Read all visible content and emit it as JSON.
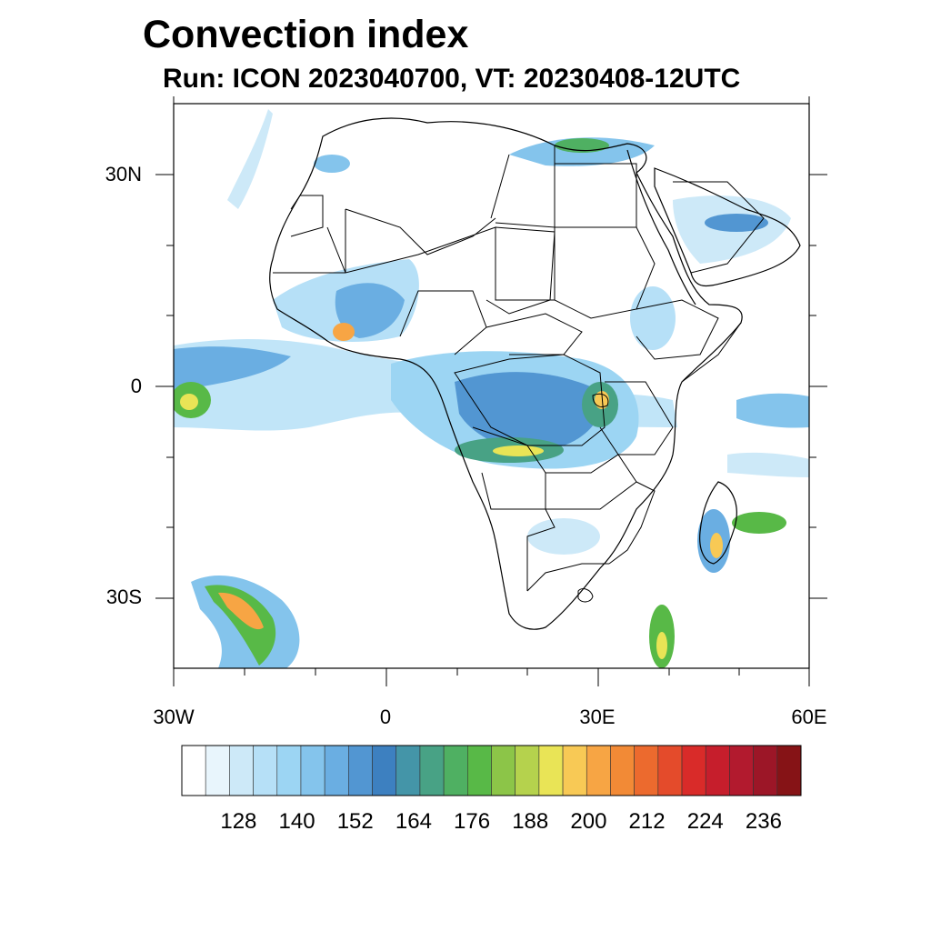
{
  "header": {
    "title": "Convection index",
    "subtitle": "Run: ICON 2023040700,  VT: 20230408-12UTC"
  },
  "map": {
    "extent": {
      "lon": [
        -30,
        60
      ],
      "lat": [
        -40,
        40
      ]
    },
    "lat_labels": [
      {
        "text": "30N",
        "lat": 30
      },
      {
        "text": "0",
        "lat": 0
      },
      {
        "text": "30S",
        "lat": -30
      }
    ],
    "lon_labels": [
      {
        "text": "30W",
        "lon": -30
      },
      {
        "text": "0",
        "lon": 0
      },
      {
        "text": "30E",
        "lon": 30
      },
      {
        "text": "60E",
        "lon": 60
      }
    ],
    "colorbar": {
      "colors": [
        "#ffffff",
        "#e8f5fc",
        "#cde9f8",
        "#b6e0f7",
        "#9cd5f3",
        "#84c4ec",
        "#6aaee2",
        "#5296d2",
        "#3d80c0",
        "#4495a8",
        "#48a285",
        "#4fb062",
        "#58b947",
        "#8cc548",
        "#b5d24d",
        "#e9e456",
        "#f8c955",
        "#f7a544",
        "#f28a36",
        "#ec6a2e",
        "#e44b2b",
        "#d92b29",
        "#c61e2c",
        "#b21a2e",
        "#9c1627",
        "#861316"
      ],
      "tick_labels": [
        "128",
        "140",
        "152",
        "164",
        "176",
        "188",
        "200",
        "212",
        "224",
        "236"
      ]
    },
    "features": {
      "coastline_color": "#000000",
      "border_color": "#000000"
    }
  }
}
